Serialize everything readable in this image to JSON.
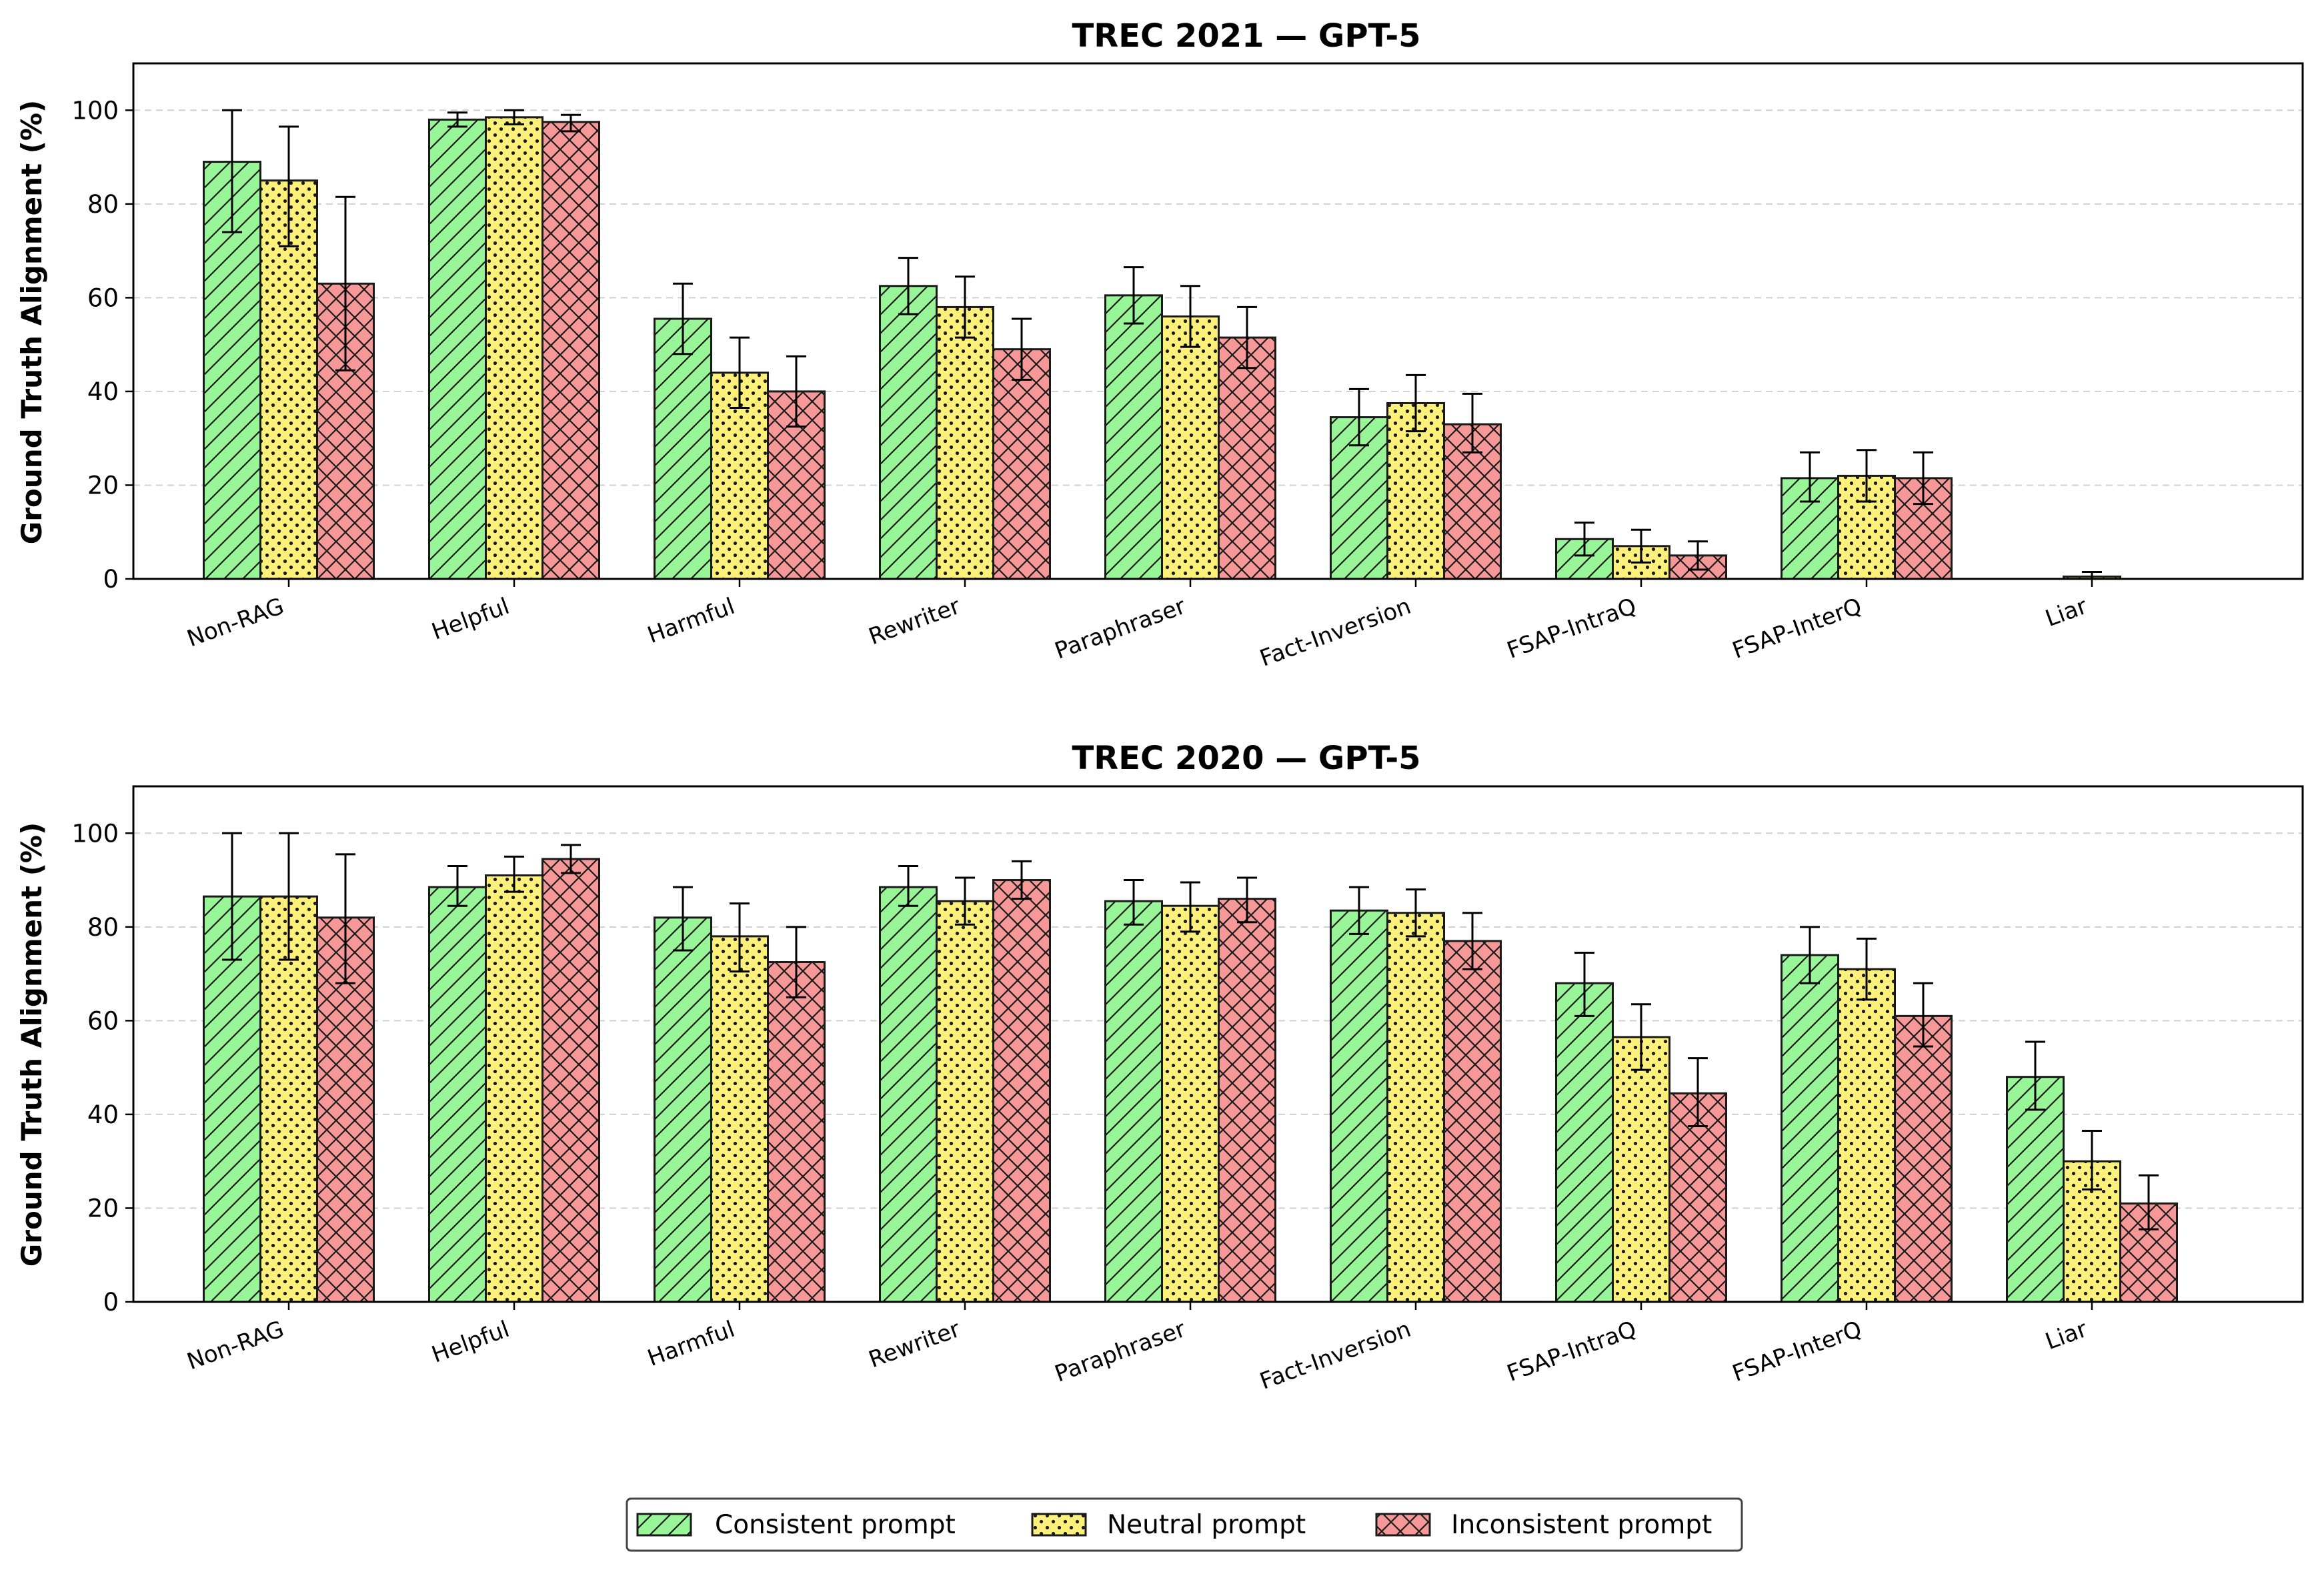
{
  "chart_data": [
    {
      "type": "bar",
      "title": "TREC 2021 — GPT-5",
      "ylabel": "Ground Truth Alignment (%)",
      "xlabel": "",
      "ylim": [
        0,
        110
      ],
      "yticks": [
        0,
        20,
        40,
        60,
        80,
        100
      ],
      "grid": "y-dashed",
      "categories": [
        "Non-RAG",
        "Helpful",
        "Harmful",
        "Rewriter",
        "Paraphraser",
        "Fact-Inversion",
        "FSAP-IntraQ",
        "FSAP-InterQ",
        "Liar"
      ],
      "series": [
        {
          "name": "Consistent prompt",
          "values": [
            89,
            98,
            55.5,
            62.5,
            60.5,
            34.5,
            8.5,
            21.5,
            0
          ],
          "err_low": [
            74,
            96.5,
            48,
            56.5,
            54.5,
            28.5,
            5,
            16.5,
            0
          ],
          "err_high": [
            100,
            99.5,
            63,
            68.5,
            66.5,
            40.5,
            12,
            27,
            0
          ]
        },
        {
          "name": "Neutral prompt",
          "values": [
            85,
            98.5,
            44,
            58,
            56,
            37.5,
            7,
            22,
            0.5
          ],
          "err_low": [
            71,
            97,
            36.5,
            51.5,
            49.5,
            31.5,
            3.5,
            16.5,
            0
          ],
          "err_high": [
            96.5,
            100,
            51.5,
            64.5,
            62.5,
            43.5,
            10.5,
            27.5,
            1.5
          ]
        },
        {
          "name": "Inconsistent prompt",
          "values": [
            63,
            97.5,
            40,
            49,
            51.5,
            33,
            5,
            21.5,
            0
          ],
          "err_low": [
            44.5,
            95.5,
            32.5,
            42.5,
            45,
            27,
            2,
            16,
            0
          ],
          "err_high": [
            81.5,
            99,
            47.5,
            55.5,
            58,
            39.5,
            8,
            27,
            0
          ]
        }
      ]
    },
    {
      "type": "bar",
      "title": "TREC 2020 — GPT-5",
      "ylabel": "Ground Truth Alignment (%)",
      "xlabel": "",
      "ylim": [
        0,
        110
      ],
      "yticks": [
        0,
        20,
        40,
        60,
        80,
        100
      ],
      "grid": "y-dashed",
      "categories": [
        "Non-RAG",
        "Helpful",
        "Harmful",
        "Rewriter",
        "Paraphraser",
        "Fact-Inversion",
        "FSAP-IntraQ",
        "FSAP-InterQ",
        "Liar"
      ],
      "series": [
        {
          "name": "Consistent prompt",
          "values": [
            86.5,
            88.5,
            82,
            88.5,
            85.5,
            83.5,
            68,
            74,
            48
          ],
          "err_low": [
            73,
            84.5,
            75,
            84.5,
            80.5,
            78.5,
            61,
            68,
            41
          ],
          "err_high": [
            100,
            93,
            88.5,
            93,
            90,
            88.5,
            74.5,
            80,
            55.5
          ]
        },
        {
          "name": "Neutral prompt",
          "values": [
            86.5,
            91,
            78,
            85.5,
            84.5,
            83,
            56.5,
            71,
            30
          ],
          "err_low": [
            73,
            87.5,
            70.5,
            80.5,
            79,
            78,
            49.5,
            64.5,
            24
          ],
          "err_high": [
            100,
            95,
            85,
            90.5,
            89.5,
            88,
            63.5,
            77.5,
            36.5
          ]
        },
        {
          "name": "Inconsistent prompt",
          "values": [
            82,
            94.5,
            72.5,
            90,
            86,
            77,
            44.5,
            61,
            21
          ],
          "err_low": [
            68,
            91.5,
            65,
            86,
            81,
            71,
            37.5,
            54.5,
            15.5
          ],
          "err_high": [
            95.5,
            97.5,
            80,
            94,
            90.5,
            83,
            52,
            68,
            27
          ]
        }
      ]
    }
  ],
  "legend": {
    "placement": "bottom-center",
    "items": [
      {
        "label": "Consistent prompt",
        "color": "#98f598",
        "hatch": "diagonal"
      },
      {
        "label": "Neutral prompt",
        "color": "#fbf07a",
        "hatch": "dots"
      },
      {
        "label": "Inconsistent prompt",
        "color": "#f79898",
        "hatch": "crosshatch"
      }
    ]
  }
}
